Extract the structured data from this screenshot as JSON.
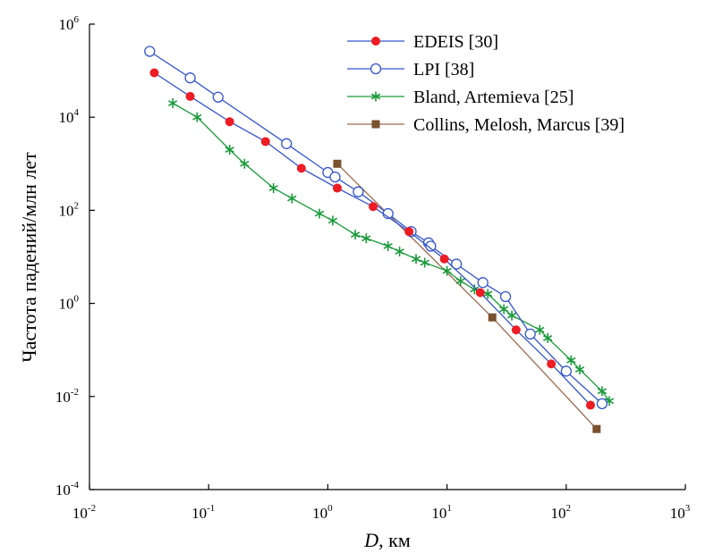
{
  "chart_data": {
    "type": "line",
    "xscale": "log",
    "yscale": "log",
    "xlim": [
      0.01,
      1000
    ],
    "ylim": [
      0.0001,
      1000000
    ],
    "xticks": [
      {
        "base": "10",
        "exp": "-2",
        "value": 0.01
      },
      {
        "base": "10",
        "exp": "-1",
        "value": 0.1
      },
      {
        "base": "10",
        "exp": "0",
        "value": 1
      },
      {
        "base": "10",
        "exp": "1",
        "value": 10
      },
      {
        "base": "10",
        "exp": "2",
        "value": 100
      },
      {
        "base": "10",
        "exp": "3",
        "value": 1000
      }
    ],
    "yticks": [
      {
        "base": "10",
        "exp": "-4",
        "value": 0.0001
      },
      {
        "base": "10",
        "exp": "-2",
        "value": 0.01
      },
      {
        "base": "10",
        "exp": "0",
        "value": 1
      },
      {
        "base": "10",
        "exp": "2",
        "value": 100
      },
      {
        "base": "10",
        "exp": "4",
        "value": 10000
      },
      {
        "base": "10",
        "exp": "6",
        "value": 1000000
      }
    ],
    "xlabel_symbol": "D",
    "xlabel_unit": ", км",
    "ylabel": "Частота падений/млн лет",
    "grid": false,
    "legend_position": "top-right",
    "series": [
      {
        "name": "EDEIS [30]",
        "color": "#3355cc",
        "marker": "filled-circle",
        "marker_color": "#ee1c24",
        "points": [
          [
            0.035,
            90000
          ],
          [
            0.07,
            28000
          ],
          [
            0.15,
            8000
          ],
          [
            0.3,
            3000
          ],
          [
            0.6,
            800
          ],
          [
            1.2,
            300
          ],
          [
            2.4,
            120
          ],
          [
            4.8,
            35
          ],
          [
            9.5,
            9
          ],
          [
            19,
            1.7
          ],
          [
            38,
            0.27
          ],
          [
            75,
            0.05
          ],
          [
            160,
            0.0065
          ]
        ]
      },
      {
        "name": "LPI [38]",
        "color": "#3355cc",
        "marker": "open-circle",
        "marker_color": "#3355cc",
        "points": [
          [
            0.032,
            260000
          ],
          [
            0.07,
            70000
          ],
          [
            0.12,
            27000
          ],
          [
            0.45,
            2700
          ],
          [
            1.0,
            650
          ],
          [
            1.15,
            520
          ],
          [
            1.8,
            250
          ],
          [
            3.2,
            85
          ],
          [
            5,
            35
          ],
          [
            7,
            20
          ],
          [
            7.3,
            17
          ],
          [
            12,
            7
          ],
          [
            20,
            2.8
          ],
          [
            31,
            1.4
          ],
          [
            50,
            0.22
          ],
          [
            100,
            0.035
          ],
          [
            200,
            0.007
          ]
        ]
      },
      {
        "name": "Bland, Artemieva [25]",
        "color": "#1a9a3a",
        "marker": "asterisk",
        "marker_color": "#1a9a3a",
        "points": [
          [
            0.05,
            20000
          ],
          [
            0.08,
            10000
          ],
          [
            0.15,
            2000
          ],
          [
            0.2,
            1000
          ],
          [
            0.35,
            300
          ],
          [
            0.5,
            180
          ],
          [
            0.85,
            85
          ],
          [
            1.1,
            60
          ],
          [
            1.7,
            30
          ],
          [
            2.1,
            25
          ],
          [
            3.2,
            17
          ],
          [
            4,
            13
          ],
          [
            5.5,
            9
          ],
          [
            6.5,
            7.5
          ],
          [
            10,
            5
          ],
          [
            13,
            3
          ],
          [
            17,
            2
          ],
          [
            22,
            1.6
          ],
          [
            30,
            0.75
          ],
          [
            35,
            0.55
          ],
          [
            60,
            0.27
          ],
          [
            70,
            0.18
          ],
          [
            110,
            0.06
          ],
          [
            130,
            0.038
          ],
          [
            200,
            0.013
          ],
          [
            230,
            0.008
          ]
        ]
      },
      {
        "name": "Collins, Melosh, Marcus [39]",
        "color": "#9a6a50",
        "marker": "square",
        "marker_color": "#7a5230",
        "points": [
          [
            1.2,
            1000
          ],
          [
            24,
            0.5
          ],
          [
            180,
            0.002
          ]
        ]
      }
    ]
  }
}
